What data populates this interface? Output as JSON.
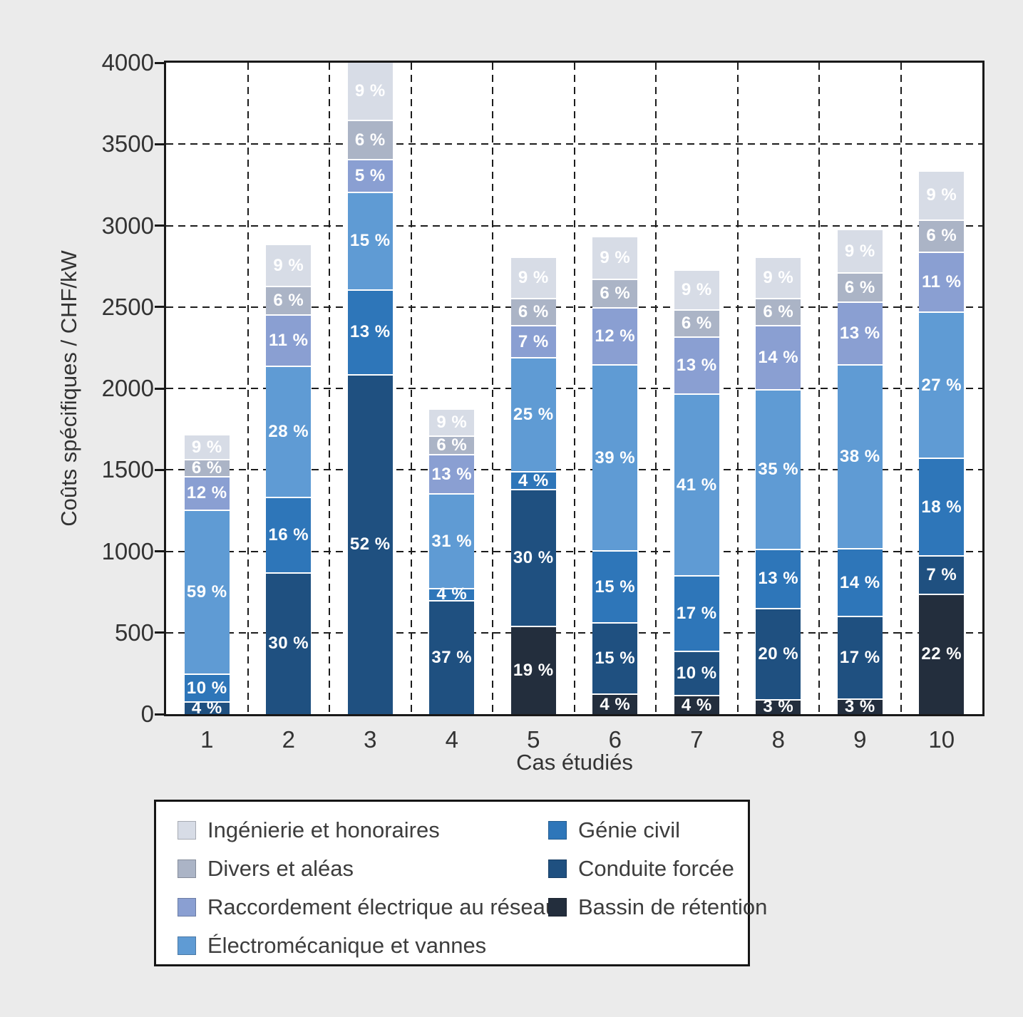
{
  "figure": {
    "background": "#ebebeb",
    "plot_background": "#ffffff",
    "grid_color": "#1c1c1c"
  },
  "chart_data": {
    "type": "bar",
    "subtype": "stacked-percent-labeled",
    "title": "",
    "xlabel": "Cas étudiés",
    "ylabel": "Coûts spécifiques / CHF/kW",
    "ylim": [
      0,
      4000
    ],
    "yticks": [
      0,
      500,
      1000,
      1500,
      2000,
      2500,
      3000,
      3500,
      4000
    ],
    "grid": {
      "horizontal": "dashed",
      "vertical": "dashed between category slots"
    },
    "legend_position": "bottom-box",
    "unit_suffix": " %",
    "categories": [
      "1",
      "2",
      "3",
      "4",
      "5",
      "6",
      "7",
      "8",
      "9",
      "10"
    ],
    "totals_chf_per_kw": [
      1710,
      2880,
      4000,
      1870,
      2800,
      2930,
      2720,
      2800,
      2970,
      3330
    ],
    "stack_order_bottom_to_top": [
      "bassin",
      "conduite",
      "genie",
      "electro",
      "raccordement",
      "divers",
      "ingenierie"
    ],
    "series": {
      "ingenierie": {
        "label": "Ingénierie et honoraires",
        "color": "#d7dce6",
        "pct": [
          9,
          9,
          9,
          9,
          9,
          9,
          9,
          9,
          9,
          9
        ]
      },
      "divers": {
        "label": "Divers et aléas",
        "color": "#abb4c6",
        "pct": [
          6,
          6,
          6,
          6,
          6,
          6,
          6,
          6,
          6,
          6
        ]
      },
      "raccordement": {
        "label": "Raccordement électrique au réseau",
        "color": "#8a9fd2",
        "pct": [
          12,
          11,
          5,
          13,
          7,
          12,
          13,
          14,
          13,
          11
        ]
      },
      "electro": {
        "label": "Électromécanique et vannes",
        "color": "#5f9bd4",
        "pct": [
          59,
          28,
          15,
          31,
          25,
          39,
          41,
          35,
          38,
          27
        ]
      },
      "genie": {
        "label": "Génie civil",
        "color": "#2e76b9",
        "pct": [
          10,
          16,
          13,
          4,
          4,
          15,
          17,
          13,
          14,
          18
        ]
      },
      "conduite": {
        "label": "Conduite forcée",
        "color": "#1f5080",
        "pct": [
          4,
          30,
          52,
          37,
          30,
          15,
          10,
          20,
          17,
          7
        ]
      },
      "bassin": {
        "label": "Bassin de rétention",
        "color": "#232e3d",
        "pct": [
          0,
          0,
          0,
          0,
          19,
          4,
          4,
          3,
          3,
          22
        ]
      }
    }
  },
  "legend": {
    "left_column": [
      "ingenierie",
      "divers",
      "raccordement",
      "electro"
    ],
    "right_column": [
      "genie",
      "conduite",
      "bassin"
    ]
  }
}
